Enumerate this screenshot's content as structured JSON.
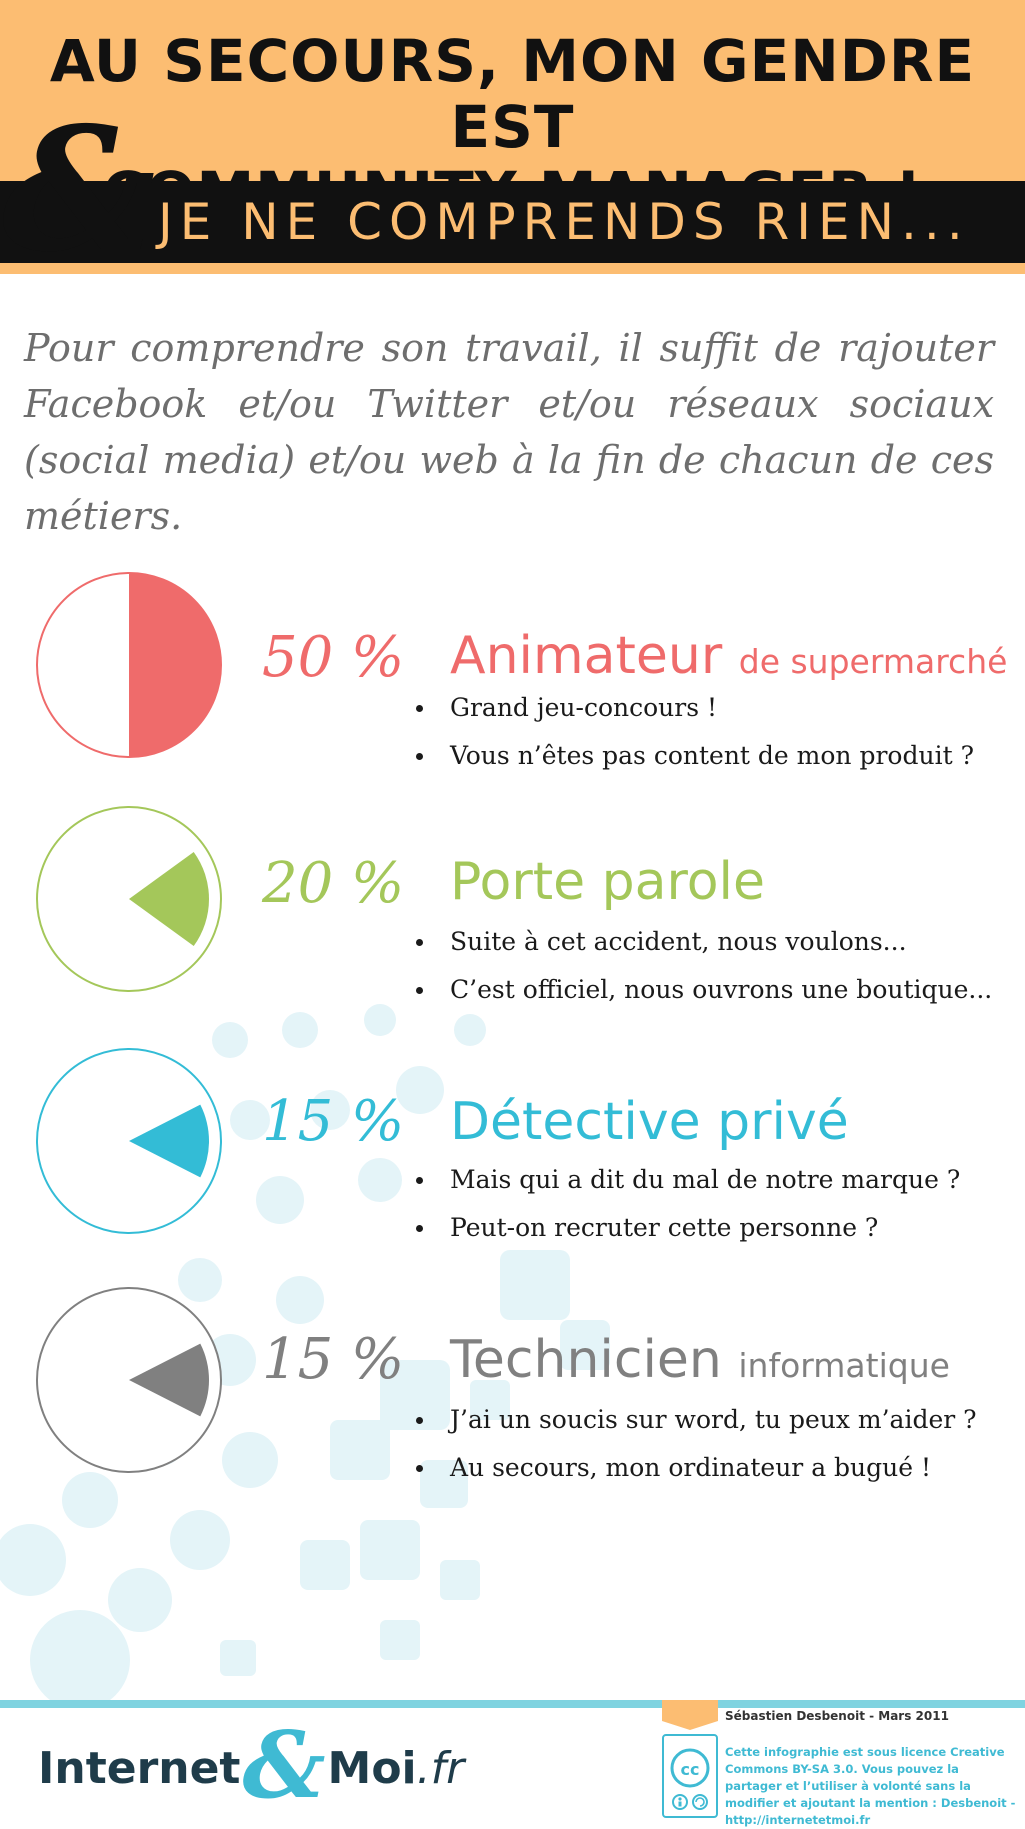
{
  "header": {
    "title_line1": "AU SECOURS, MON GENDRE EST",
    "title_line2": "COMMUNITY MANAGER !",
    "ampersand": "&",
    "subtitle": "JE NE COMPRENDS RIEN..."
  },
  "intro": "Pour comprendre son travail, il suffit de rajouter Facebook et/ou Twitter et/ou réseaux sociaux (social media) et/ou web à la fin de chacun de ces métiers.",
  "items": [
    {
      "percent_label": "50 %",
      "value": 50,
      "color": "#ef6b6b",
      "job": "Animateur",
      "job_suffix": "de supermarché",
      "bullets": [
        "Grand jeu-concours !",
        "Vous n’êtes pas content de mon produit  ?"
      ]
    },
    {
      "percent_label": "20 %",
      "value": 20,
      "color": "#a4c75a",
      "job": "Porte parole",
      "job_suffix": "",
      "bullets": [
        "Suite à cet accident, nous voulons...",
        "C’est officiel, nous ouvrons une boutique..."
      ]
    },
    {
      "percent_label": "15 %",
      "value": 15,
      "color": "#33bcd6",
      "job": "Détective privé",
      "job_suffix": "",
      "bullets": [
        "Mais qui a dit du mal de notre marque ?",
        "Peut-on recruter cette personne ?"
      ]
    },
    {
      "percent_label": "15 %",
      "value": 15,
      "color": "#808080",
      "job": "Technicien",
      "job_suffix": "informatique",
      "bullets": [
        "J’ai un soucis sur word, tu peux m’aider ?",
        "Au secours, mon ordinateur a bugué !"
      ]
    }
  ],
  "footer": {
    "brand_name": "Internet",
    "brand_amp": "&",
    "brand_moi": "Moi",
    "brand_tld": ".fr",
    "author": "Sébastien Desbenoit - Mars 2011",
    "license_icon": "creative-commons-icon",
    "license_text": "Cette infographie est  sous licence Creative Commons BY-SA 3.0. Vous pouvez la partager et l’utiliser à volonté sans la modifier et ajoutant la mention : Desbenoit - http://internetetmoi.fr"
  },
  "colors": {
    "header_bg": "#fcbd72",
    "band_bg": "#111111",
    "accent": "#3fbad3"
  }
}
